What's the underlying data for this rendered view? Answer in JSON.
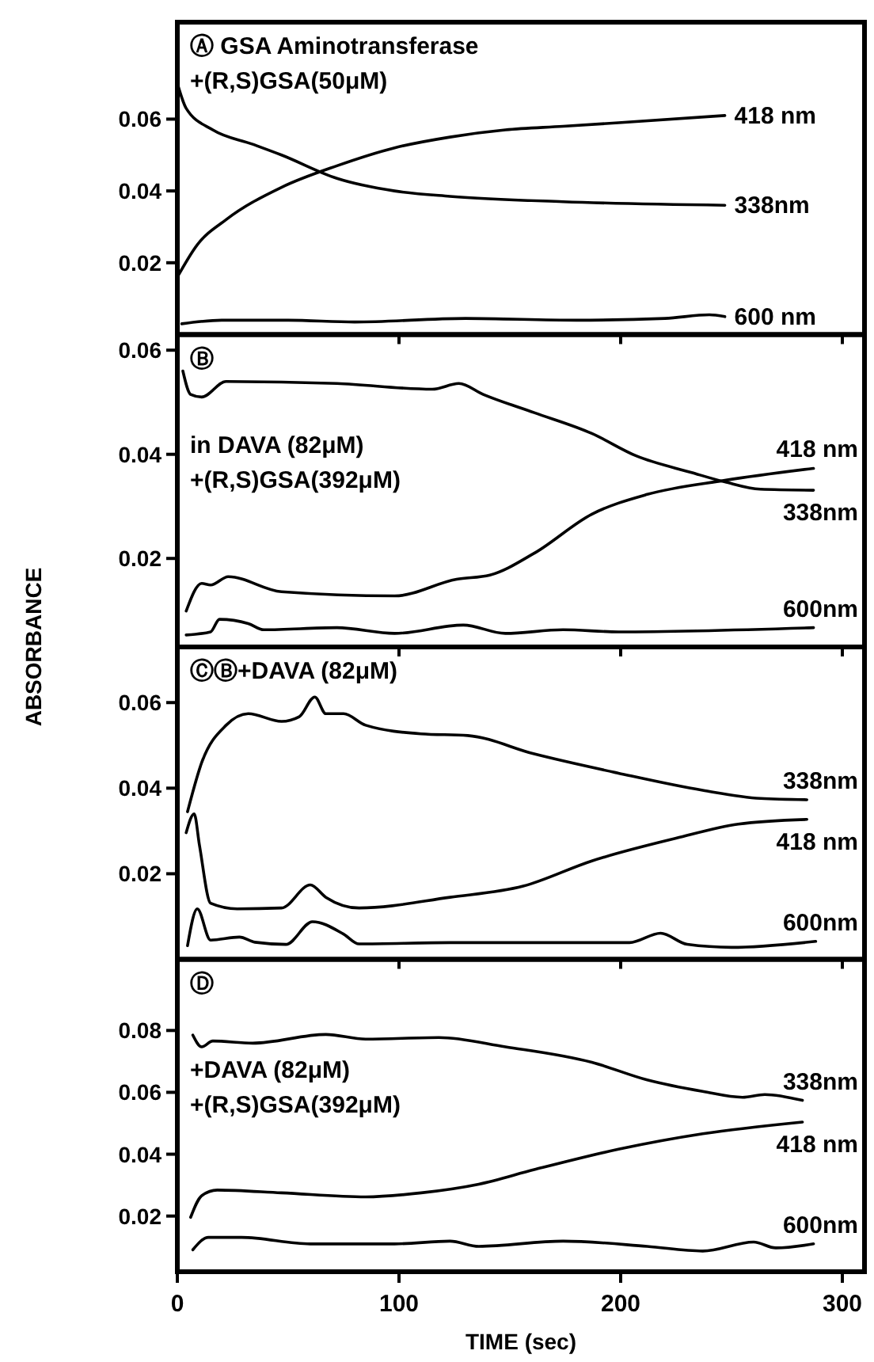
{
  "chart_data": [
    {
      "type": "line",
      "xlim": [
        0,
        310
      ],
      "xticks": [
        0,
        100,
        200,
        300
      ],
      "ylim": [
        0,
        0.087
      ],
      "yticks": [
        0.02,
        0.04,
        0.06
      ],
      "tick_labels": "y",
      "annotations": [
        "Ⓐ GSA Aminotransferase",
        "+(R,S)GSA(50μM)"
      ],
      "series": [
        {
          "name": "418 nm",
          "color": "#000000",
          "x": [
            0,
            9,
            22,
            47,
            72,
            98,
            123,
            148,
            174,
            199,
            247
          ],
          "values": [
            0.016,
            0.025,
            0.032,
            0.041,
            0.047,
            0.052,
            0.055,
            0.057,
            0.058,
            0.059,
            0.061
          ]
        },
        {
          "name": "338nm",
          "color": "#000000",
          "x": [
            0,
            4,
            16,
            34,
            47,
            72,
            98,
            123,
            174,
            247
          ],
          "values": [
            0.07,
            0.063,
            0.057,
            0.053,
            0.05,
            0.0435,
            0.04,
            0.0385,
            0.037,
            0.036
          ]
        },
        {
          "name": "600 nm",
          "color": "#000000",
          "x": [
            2,
            20,
            50,
            80,
            130,
            180,
            220,
            240,
            247
          ],
          "values": [
            0.003,
            0.004,
            0.004,
            0.0035,
            0.0045,
            0.004,
            0.0045,
            0.0055,
            0.005
          ]
        }
      ]
    },
    {
      "type": "line",
      "xlim": [
        0,
        310
      ],
      "xticks": [
        0,
        100,
        200,
        300
      ],
      "ylim": [
        0.003,
        0.063
      ],
      "yticks": [
        0.02,
        0.04,
        0.06
      ],
      "tick_labels": "y",
      "ylabel": "ABSORBANCE",
      "annotations": [
        "Ⓑ",
        "in DAVA (82μM)",
        "+(R,S)GSA(392μM)"
      ],
      "series": [
        {
          "name": "418 nm",
          "color": "#000000",
          "x": [
            4,
            11,
            15,
            23,
            47,
            98,
            126,
            141,
            161,
            187,
            212,
            247,
            287
          ],
          "values": [
            0.0099,
            0.0152,
            0.0149,
            0.0165,
            0.0136,
            0.0128,
            0.016,
            0.0168,
            0.021,
            0.0285,
            0.0323,
            0.035,
            0.0373
          ]
        },
        {
          "name": "338nm",
          "color": "#000000",
          "x": [
            2.5,
            6,
            11,
            22,
            72,
            115,
            127,
            138,
            161,
            187,
            207,
            232,
            247,
            263,
            287
          ],
          "values": [
            0.056,
            0.0515,
            0.051,
            0.054,
            0.0536,
            0.0525,
            0.0536,
            0.0515,
            0.048,
            0.044,
            0.0397,
            0.0365,
            0.0347,
            0.0333,
            0.0331
          ]
        },
        {
          "name": "600nm",
          "color": "#000000",
          "x": [
            4,
            15,
            19,
            32,
            39,
            72,
            98,
            129,
            148,
            174,
            199,
            287
          ],
          "values": [
            0.0053,
            0.0059,
            0.0083,
            0.0075,
            0.0063,
            0.0067,
            0.0056,
            0.0072,
            0.0056,
            0.0063,
            0.0059,
            0.0067
          ]
        }
      ]
    },
    {
      "type": "line",
      "xlim": [
        0,
        310
      ],
      "xticks": [
        0,
        100,
        200,
        300
      ],
      "ylim": [
        0,
        0.073
      ],
      "yticks": [
        0.02,
        0.04,
        0.06
      ],
      "tick_labels": "y",
      "annotations": [
        "ⒸⒷ+DAVA (82μM)"
      ],
      "series": [
        {
          "name": "338nm",
          "color": "#000000",
          "x": [
            4.6,
            11,
            22,
            32,
            47,
            55,
            62,
            67,
            75,
            85,
            110,
            131,
            161,
            199,
            237,
            263,
            284
          ],
          "values": [
            0.0345,
            0.046,
            0.0547,
            0.0574,
            0.0556,
            0.0567,
            0.0613,
            0.0574,
            0.0574,
            0.0547,
            0.0527,
            0.0523,
            0.048,
            0.0435,
            0.0395,
            0.0376,
            0.0373
          ]
        },
        {
          "name": "418 nm",
          "color": "#000000",
          "x": [
            4,
            7.6,
            10,
            15,
            27,
            47,
            60,
            67,
            82,
            123,
            156,
            187,
            225,
            253,
            284
          ],
          "values": [
            0.0296,
            0.034,
            0.0266,
            0.0131,
            0.0118,
            0.012,
            0.0174,
            0.0145,
            0.012,
            0.0145,
            0.0171,
            0.023,
            0.0283,
            0.0316,
            0.0327
          ]
        },
        {
          "name": "600nm",
          "color": "#000000",
          "x": [
            4.6,
            9,
            15,
            28,
            35,
            49,
            61,
            75,
            82,
            123,
            204,
            218,
            230,
            250,
            288
          ],
          "values": [
            0.0032,
            0.0118,
            0.0045,
            0.0052,
            0.004,
            0.0035,
            0.0088,
            0.0059,
            0.0036,
            0.0039,
            0.0039,
            0.0061,
            0.0035,
            0.0028,
            0.0042
          ]
        }
      ]
    },
    {
      "type": "line",
      "xlim": [
        0,
        310
      ],
      "xticks": [
        0,
        100,
        200,
        300
      ],
      "ylim": [
        0.002,
        0.103
      ],
      "yticks": [
        0.02,
        0.04,
        0.06,
        0.08
      ],
      "xlabel": "TIME (sec)",
      "annotations": [
        "Ⓓ",
        "+DAVA (82μM)",
        "+(R,S)GSA(392μM)"
      ],
      "series": [
        {
          "name": "338nm",
          "color": "#000000",
          "x": [
            7,
            11,
            16,
            34,
            67,
            85,
            118,
            148,
            187,
            212,
            237,
            255,
            265,
            282
          ],
          "values": [
            0.0785,
            0.0747,
            0.0766,
            0.0759,
            0.0787,
            0.0772,
            0.0777,
            0.0747,
            0.0697,
            0.064,
            0.0603,
            0.0584,
            0.0593,
            0.0574
          ]
        },
        {
          "name": "418 nm",
          "color": "#000000",
          "x": [
            6,
            11,
            18,
            47,
            85,
            110,
            136,
            161,
            199,
            237,
            282
          ],
          "values": [
            0.0196,
            0.0266,
            0.0284,
            0.0275,
            0.0262,
            0.0275,
            0.0303,
            0.035,
            0.0416,
            0.0466,
            0.0504
          ]
        },
        {
          "name": "600nm",
          "color": "#000000",
          "x": [
            7,
            14,
            29,
            60,
            98,
            123,
            136,
            174,
            212,
            237,
            260,
            270,
            287
          ],
          "values": [
            0.0091,
            0.0131,
            0.0131,
            0.011,
            0.011,
            0.0119,
            0.0102,
            0.0119,
            0.0102,
            0.0087,
            0.0116,
            0.0097,
            0.011
          ]
        }
      ]
    }
  ]
}
